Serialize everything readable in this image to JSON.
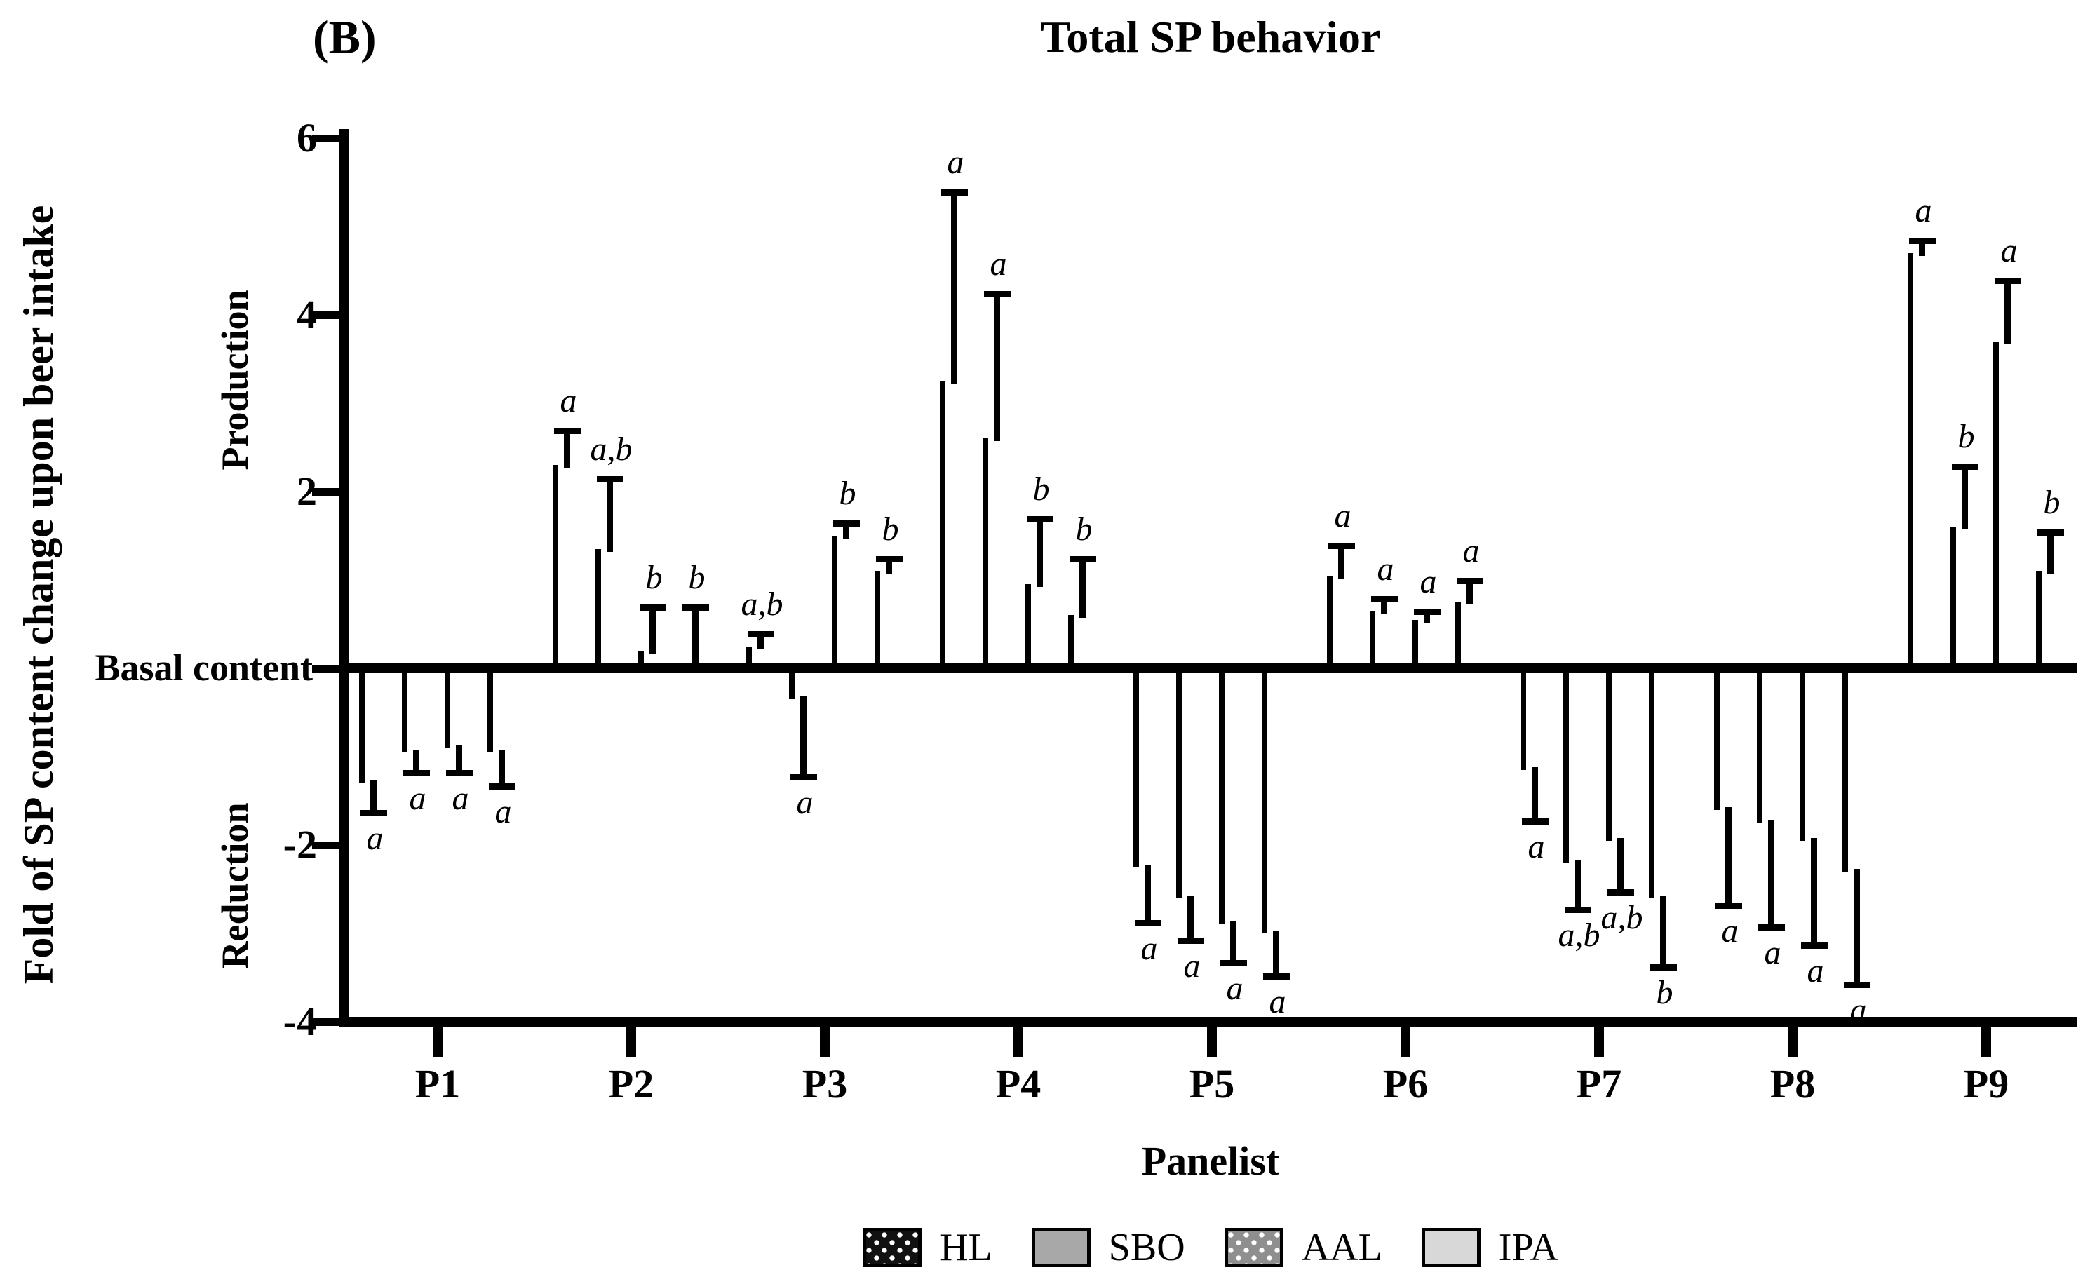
{
  "panel_label": "(B)",
  "title": "Total SP behavior",
  "y_axis": {
    "label": "Fold of SP content change upon beer intake",
    "production_label": "Production",
    "reduction_label": "Reduction",
    "zero_label": "Basal content",
    "ticks": [
      6,
      4,
      2,
      0,
      -2,
      -4
    ],
    "range": [
      -4,
      6
    ]
  },
  "x_axis": {
    "label": "Panelist",
    "categories": [
      "P1",
      "P2",
      "P3",
      "P4",
      "P5",
      "P6",
      "P7",
      "P8",
      "P9"
    ]
  },
  "colors": {
    "hl_fill": "#111111",
    "sbo_fill": "#a8a8a8",
    "aal_fill": "#8f8f8f",
    "ipa_fill": "#d8d8d8",
    "axis": "#000000"
  },
  "legend": [
    {
      "name": "HL",
      "fill": "#111111",
      "pattern": "white-dots"
    },
    {
      "name": "SBO",
      "fill": "#a8a8a8",
      "pattern": "solid"
    },
    {
      "name": "AAL",
      "fill": "#8f8f8f",
      "pattern": "white-dots"
    },
    {
      "name": "IPA",
      "fill": "#d8d8d8",
      "pattern": "solid"
    }
  ],
  "chart_data": {
    "type": "bar",
    "title": "Total SP behavior",
    "xlabel": "Panelist",
    "ylabel": "Fold of SP content change upon beer intake",
    "ylim": [
      -4,
      6
    ],
    "grid": false,
    "legend_position": "bottom",
    "categories": [
      "P1",
      "P2",
      "P3",
      "P4",
      "P5",
      "P6",
      "P7",
      "P8",
      "P9"
    ],
    "series": [
      {
        "name": "HL",
        "fill": "#111111",
        "pattern": "white-dots",
        "values": [
          -1.3,
          2.3,
          0.25,
          3.25,
          -2.25,
          1.05,
          -1.15,
          -1.6,
          4.7
        ],
        "errors": [
          0.3,
          0.35,
          0.1,
          2.1,
          0.6,
          0.3,
          0.55,
          1.05,
          0.1
        ],
        "letters": [
          "a",
          "a",
          "a,b",
          "a",
          "a",
          "a",
          "a",
          "a",
          "a"
        ]
      },
      {
        "name": "SBO",
        "fill": "#a8a8a8",
        "pattern": "solid",
        "values": [
          -0.95,
          1.35,
          -0.35,
          2.6,
          -2.6,
          0.65,
          -2.2,
          -1.75,
          1.6
        ],
        "errors": [
          0.2,
          0.75,
          0.85,
          1.6,
          0.45,
          0.1,
          0.5,
          1.15,
          0.65
        ],
        "letters": [
          "a",
          "a,b",
          "a",
          "a",
          "a",
          "a",
          "a,b",
          "a",
          "b"
        ]
      },
      {
        "name": "AAL",
        "fill": "#8f8f8f",
        "pattern": "white-dots",
        "values": [
          -0.9,
          0.2,
          1.5,
          0.95,
          -2.9,
          0.55,
          -1.95,
          -1.95,
          3.7
        ],
        "errors": [
          0.25,
          0.45,
          0.1,
          0.7,
          0.4,
          0.05,
          0.55,
          1.15,
          0.65
        ],
        "letters": [
          "a",
          "b",
          "b",
          "b",
          "a",
          "a",
          "a,b",
          "a",
          "a"
        ]
      },
      {
        "name": "IPA",
        "fill": "#d8d8d8",
        "pattern": "solid",
        "values": [
          -0.95,
          0.05,
          1.1,
          0.6,
          -3.0,
          0.75,
          -2.6,
          -2.3,
          1.1
        ],
        "errors": [
          0.35,
          0.6,
          0.1,
          0.6,
          0.45,
          0.2,
          0.75,
          1.25,
          0.4
        ],
        "letters": [
          "a",
          "b",
          "b",
          "b",
          "a",
          "a",
          "b",
          "a",
          "b"
        ]
      }
    ]
  }
}
